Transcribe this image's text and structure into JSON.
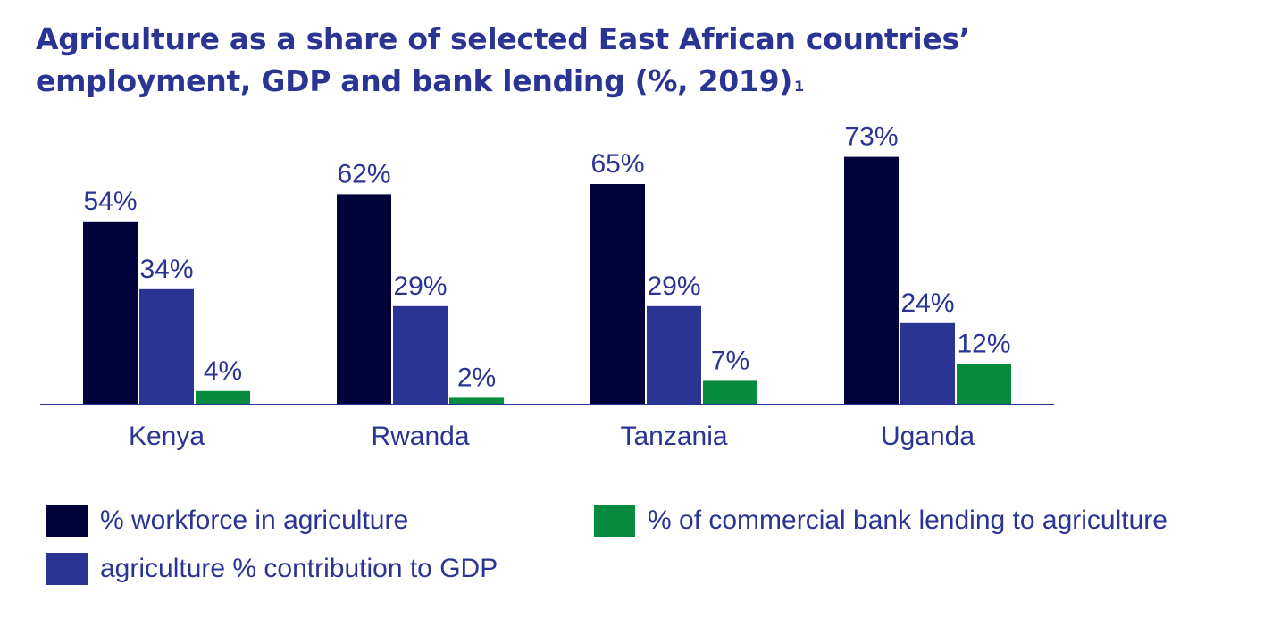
{
  "title": {
    "line1": "Agriculture as a share of selected East African countries’",
    "line2": "employment, GDP and bank lending (%, 2019)",
    "footnote_mark": "1"
  },
  "colors": {
    "text": "#2a3593",
    "axis": "#2a3593"
  },
  "chart_data": {
    "type": "bar",
    "title": "Agriculture as a share of selected East African countries’ employment, GDP and bank lending (%, 2019)",
    "xlabel": "",
    "ylabel": "",
    "ylim": [
      0,
      75
    ],
    "grid": false,
    "legend_position": "bottom",
    "categories": [
      "Kenya",
      "Rwanda",
      "Tanzania",
      "Uganda"
    ],
    "series": [
      {
        "name": "% workforce in agriculture",
        "color": "#02033a",
        "values": [
          54,
          62,
          65,
          73
        ],
        "labels": [
          "54%",
          "62%",
          "65%",
          "73%"
        ]
      },
      {
        "name": "agriculture % contribution to GDP",
        "color": "#2a3593",
        "values": [
          34,
          29,
          29,
          24
        ],
        "labels": [
          "34%",
          "29%",
          "29%",
          "24%"
        ]
      },
      {
        "name": "% of commercial bank lending to agriculture",
        "color": "#058a3e",
        "values": [
          4,
          2,
          7,
          12
        ],
        "labels": [
          "4%",
          "2%",
          "7%",
          "12%"
        ]
      }
    ]
  }
}
